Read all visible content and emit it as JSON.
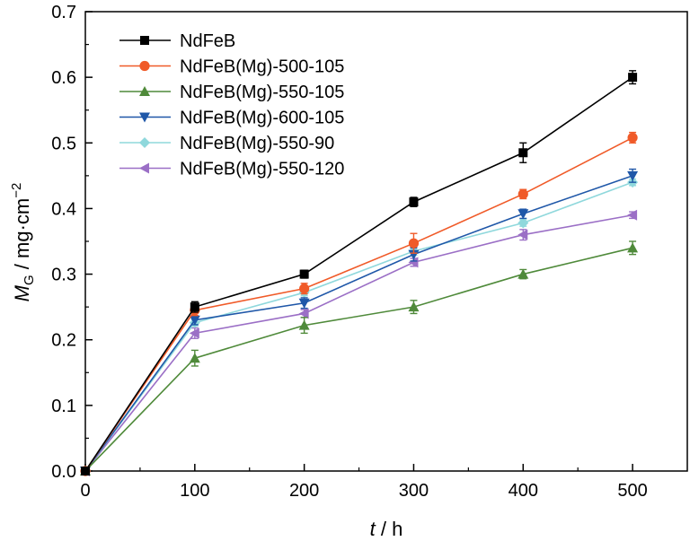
{
  "chart_data": {
    "type": "line",
    "xlabel": {
      "symbol": "t",
      "unit": " / h"
    },
    "ylabel": {
      "symbol": "M",
      "subscript": "G",
      "unit": " / mg·cm",
      "superscript": "−2"
    },
    "xlim": [
      0,
      550
    ],
    "ylim": [
      0,
      0.7
    ],
    "x_ticks": [
      "0",
      "100",
      "200",
      "300",
      "400",
      "500"
    ],
    "y_ticks": [
      "0.0",
      "0.1",
      "0.2",
      "0.3",
      "0.4",
      "0.5",
      "0.6",
      "0.7"
    ],
    "x_tick_values": [
      0,
      100,
      200,
      300,
      400,
      500
    ],
    "y_tick_values": [
      0,
      0.1,
      0.2,
      0.3,
      0.4,
      0.5,
      0.6,
      0.7
    ],
    "grid": false,
    "legend_position": "top-left",
    "x": [
      0,
      100,
      200,
      300,
      400,
      500
    ],
    "series": [
      {
        "name": "NdFeB",
        "color": "#000000",
        "marker": "square",
        "values": [
          0,
          0.25,
          0.3,
          0.41,
          0.485,
          0.6
        ],
        "errors": [
          0,
          0.008,
          0.006,
          0.007,
          0.015,
          0.01
        ]
      },
      {
        "name": "NdFeB(Mg)-500-105",
        "color": "#f05a28",
        "marker": "circle",
        "values": [
          0,
          0.245,
          0.278,
          0.347,
          0.422,
          0.508
        ],
        "errors": [
          0,
          0.008,
          0.008,
          0.015,
          0.007,
          0.008
        ]
      },
      {
        "name": "NdFeB(Mg)-550-105",
        "color": "#4f8a3a",
        "marker": "triangle-up",
        "values": [
          0,
          0.172,
          0.222,
          0.25,
          0.3,
          0.34
        ],
        "errors": [
          0,
          0.012,
          0.012,
          0.01,
          0.007,
          0.01
        ]
      },
      {
        "name": "NdFeB(Mg)-600-105",
        "color": "#1f57a8",
        "marker": "triangle-down",
        "values": [
          0,
          0.23,
          0.256,
          0.33,
          0.392,
          0.45
        ],
        "errors": [
          0,
          0.007,
          0.008,
          0.01,
          0.007,
          0.01
        ]
      },
      {
        "name": "NdFeB(Mg)-550-90",
        "color": "#8fd8dc",
        "marker": "diamond",
        "values": [
          0,
          0.226,
          0.272,
          0.335,
          0.378,
          0.44
        ],
        "errors": [
          0,
          0.005,
          0.005,
          0.006,
          0.005,
          0.005
        ]
      },
      {
        "name": "NdFeB(Mg)-550-120",
        "color": "#9b6fc6",
        "marker": "triangle-left",
        "values": [
          0,
          0.21,
          0.24,
          0.318,
          0.36,
          0.39
        ],
        "errors": [
          0,
          0.008,
          0.006,
          0.006,
          0.008,
          0.005
        ]
      }
    ]
  }
}
